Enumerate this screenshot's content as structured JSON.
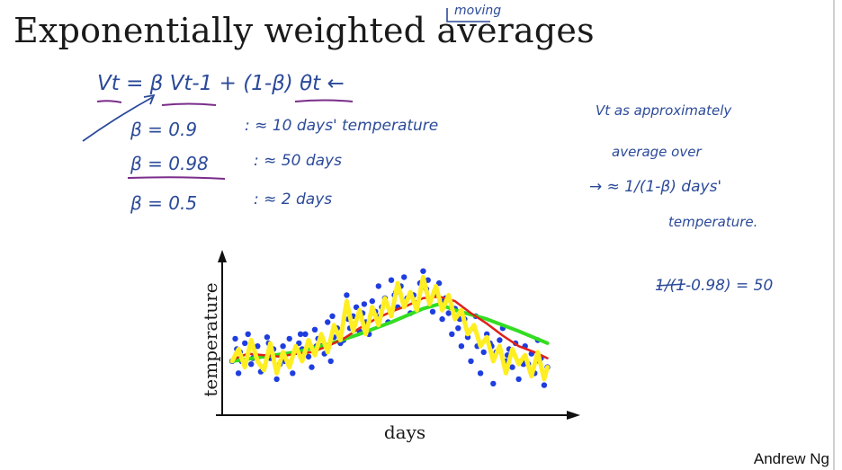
{
  "slide": {
    "title": "Exponentially weighted averages",
    "title_annotation": "moving",
    "author": "Andrew Ng"
  },
  "notes": {
    "formula": "Vt = β Vt-1 + (1-β) θt ←",
    "beta_rows": [
      {
        "beta": "β = 0.9",
        "approx": ": ≈ 10 days' temperature"
      },
      {
        "beta": "β = 0.98",
        "approx": ": ≈ 50 days"
      },
      {
        "beta": "β = 0.5",
        "approx": ": ≈ 2 days"
      }
    ],
    "right_note_line1": "Vt as approximately",
    "right_note_line2": "average over",
    "right_note_line3": "→ ≈ 1/(1-β) days'",
    "right_note_line4": "temperature.",
    "right_calc": "1/(1-0.98) = 50"
  },
  "colors": {
    "ink": "#2b4a99",
    "underline": "#7a2d8a",
    "points": "#1f3ee0",
    "red_line": "#e0211a",
    "yellow_line": "#ffee22",
    "green_line": "#33dd22"
  },
  "chart_data": {
    "type": "scatter",
    "xlabel": "days",
    "ylabel": "temperature",
    "title": "",
    "xlim": [
      0,
      100
    ],
    "ylim": [
      0,
      100
    ],
    "series": [
      {
        "name": "temperature points",
        "type": "scatter",
        "x": [
          0,
          1,
          1.5,
          2,
          3,
          4,
          5,
          6,
          7,
          8,
          9,
          10,
          11,
          12,
          13,
          14,
          15,
          16,
          17,
          18,
          19,
          20,
          21,
          22,
          23,
          24,
          25,
          26,
          27,
          28,
          29,
          30,
          31,
          32,
          33,
          34,
          35,
          36,
          37,
          38,
          39,
          40,
          41,
          42,
          43,
          44,
          45,
          46,
          47,
          48,
          49,
          50,
          51,
          52,
          53,
          54,
          55,
          56,
          57,
          58,
          59,
          60,
          61,
          62,
          63,
          64,
          65,
          66,
          67,
          68,
          69,
          70,
          71,
          72,
          73,
          74,
          75,
          76,
          77,
          78,
          79,
          80,
          81,
          82,
          83,
          84,
          85,
          86,
          87,
          88,
          89,
          90,
          91,
          92,
          93,
          94,
          95,
          96,
          97,
          98,
          99,
          2.5,
          6.5,
          11.5,
          16.5,
          21.5,
          26.5,
          31.5,
          36.5,
          41.5,
          46.5,
          51.5,
          56.5,
          61.5,
          66.5,
          71.5,
          76.5,
          81.5,
          86.5,
          91.5,
          96.5
        ],
        "y": [
          30,
          45,
          38,
          22,
          30,
          42,
          48,
          28,
          34,
          40,
          23,
          26,
          46,
          32,
          38,
          18,
          28,
          40,
          30,
          45,
          22,
          36,
          42,
          38,
          48,
          33,
          26,
          51,
          45,
          40,
          35,
          56,
          30,
          46,
          52,
          42,
          44,
          74,
          52,
          60,
          66,
          50,
          62,
          56,
          48,
          70,
          63,
          80,
          66,
          72,
          56,
          84,
          74,
          66,
          80,
          86,
          72,
          62,
          74,
          68,
          82,
          90,
          78,
          70,
          63,
          75,
          82,
          58,
          72,
          62,
          48,
          65,
          52,
          40,
          58,
          46,
          30,
          52,
          40,
          22,
          36,
          48,
          42,
          15,
          36,
          44,
          52,
          30,
          38,
          26,
          42,
          18,
          30,
          40,
          28,
          35,
          22,
          44,
          32,
          14,
          26,
          36,
          32,
          42,
          30,
          48,
          40,
          60,
          58,
          68,
          60,
          76,
          74,
          84,
          70,
          58,
          60,
          40,
          34,
          28,
          30
        ]
      },
      {
        "name": "beta 0.9",
        "type": "line",
        "color": "red",
        "x": [
          0,
          5,
          10,
          15,
          20,
          25,
          30,
          35,
          40,
          45,
          50,
          55,
          60,
          65,
          70,
          75,
          80,
          85,
          90,
          95,
          99
        ],
        "y": [
          31,
          35,
          34,
          33,
          35,
          36,
          40,
          45,
          52,
          58,
          63,
          67,
          72,
          73,
          70,
          62,
          55,
          47,
          40,
          36,
          32
        ]
      },
      {
        "name": "beta 0.98",
        "type": "line",
        "color": "green",
        "x": [
          0,
          10,
          20,
          30,
          40,
          50,
          60,
          65,
          70,
          80,
          90,
          99
        ],
        "y": [
          30,
          33,
          36,
          41,
          48,
          56,
          65,
          68,
          64,
          58,
          50,
          42
        ]
      },
      {
        "name": "beta 0.5",
        "type": "line",
        "color": "yellow",
        "x": [
          0,
          2,
          4,
          6,
          8,
          10,
          12,
          14,
          16,
          18,
          20,
          22,
          24,
          26,
          28,
          30,
          32,
          34,
          36,
          38,
          40,
          42,
          44,
          46,
          48,
          50,
          52,
          54,
          56,
          58,
          60,
          62,
          64,
          66,
          68,
          70,
          72,
          74,
          76,
          78,
          80,
          82,
          84,
          86,
          88,
          90,
          92,
          94,
          96,
          98,
          99
        ],
        "y": [
          30,
          38,
          26,
          44,
          30,
          24,
          42,
          22,
          36,
          26,
          40,
          30,
          44,
          34,
          48,
          36,
          54,
          44,
          70,
          50,
          64,
          48,
          66,
          54,
          72,
          60,
          82,
          66,
          76,
          64,
          86,
          68,
          80,
          64,
          74,
          58,
          64,
          48,
          54,
          40,
          46,
          30,
          40,
          22,
          38,
          28,
          34,
          20,
          36,
          18,
          26
        ]
      }
    ]
  }
}
